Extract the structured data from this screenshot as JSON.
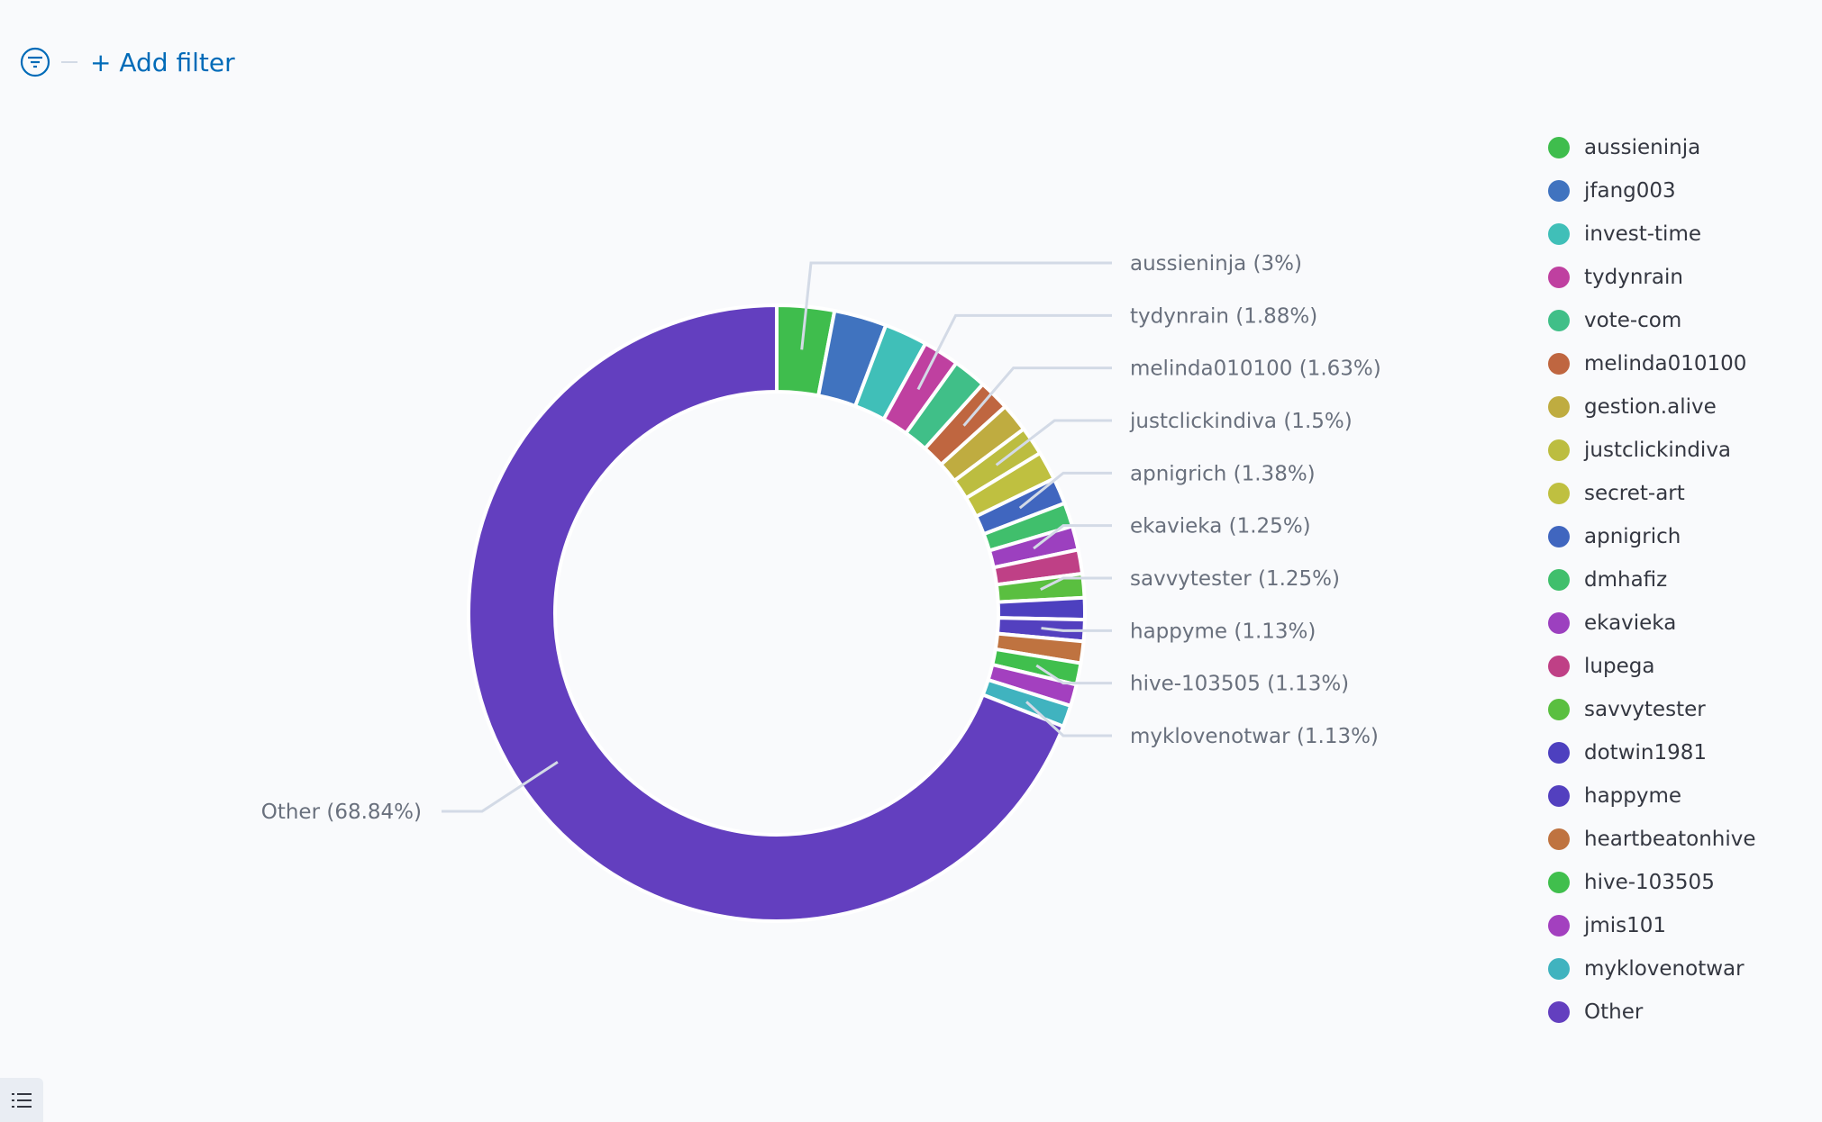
{
  "filter_bar": {
    "add_filter_label": "+ Add filter"
  },
  "chart_data": {
    "type": "pie",
    "donut": true,
    "title": "",
    "legend_position": "right",
    "slices": [
      {
        "name": "aussieninja",
        "value": 3,
        "label": "aussieninja (3%)",
        "color": "#3fbd4d"
      },
      {
        "name": "jfang003",
        "value": 2.75,
        "label": null,
        "color": "#4073bf"
      },
      {
        "name": "invest-time",
        "value": 2.25,
        "label": null,
        "color": "#40bfb8"
      },
      {
        "name": "tydynrain",
        "value": 1.88,
        "label": "tydynrain (1.88%)",
        "color": "#bf40a0"
      },
      {
        "name": "vote-com",
        "value": 1.75,
        "label": null,
        "color": "#40bf88"
      },
      {
        "name": "melinda010100",
        "value": 1.63,
        "label": "melinda010100 (1.63%)",
        "color": "#bf6640"
      },
      {
        "name": "gestion.alive",
        "value": 1.5,
        "label": null,
        "color": "#bfac40"
      },
      {
        "name": "justclickindiva",
        "value": 1.5,
        "label": "justclickindiva (1.5%)",
        "color": "#bcbd40"
      },
      {
        "name": "secret-art",
        "value": 1.5,
        "label": null,
        "color": "#bfc040"
      },
      {
        "name": "apnigrich",
        "value": 1.38,
        "label": "apnigrich (1.38%)",
        "color": "#4066bf"
      },
      {
        "name": "dmhafiz",
        "value": 1.25,
        "label": null,
        "color": "#40bf6c"
      },
      {
        "name": "ekavieka",
        "value": 1.25,
        "label": "ekavieka (1.25%)",
        "color": "#9c40bf"
      },
      {
        "name": "lupega",
        "value": 1.25,
        "label": null,
        "color": "#bf4086"
      },
      {
        "name": "savvytester",
        "value": 1.25,
        "label": "savvytester (1.25%)",
        "color": "#5abf40"
      },
      {
        "name": "dotwin1981",
        "value": 1.13,
        "label": null,
        "color": "#4d40bf"
      },
      {
        "name": "happyme",
        "value": 1.13,
        "label": "happyme (1.13%)",
        "color": "#5340bf"
      },
      {
        "name": "heartbeatonhive",
        "value": 1.13,
        "label": null,
        "color": "#bf7340"
      },
      {
        "name": "hive-103505",
        "value": 1.13,
        "label": "hive-103505 (1.13%)",
        "color": "#40bf4d"
      },
      {
        "name": "jmis101",
        "value": 1.13,
        "label": null,
        "color": "#a340bf"
      },
      {
        "name": "myklovenotwar",
        "value": 1.13,
        "label": "myklovenotwar (1.13%)",
        "color": "#40b3bf"
      },
      {
        "name": "Other",
        "value": 68.84,
        "label": "Other (68.84%)",
        "color": "#633fbf"
      }
    ]
  }
}
